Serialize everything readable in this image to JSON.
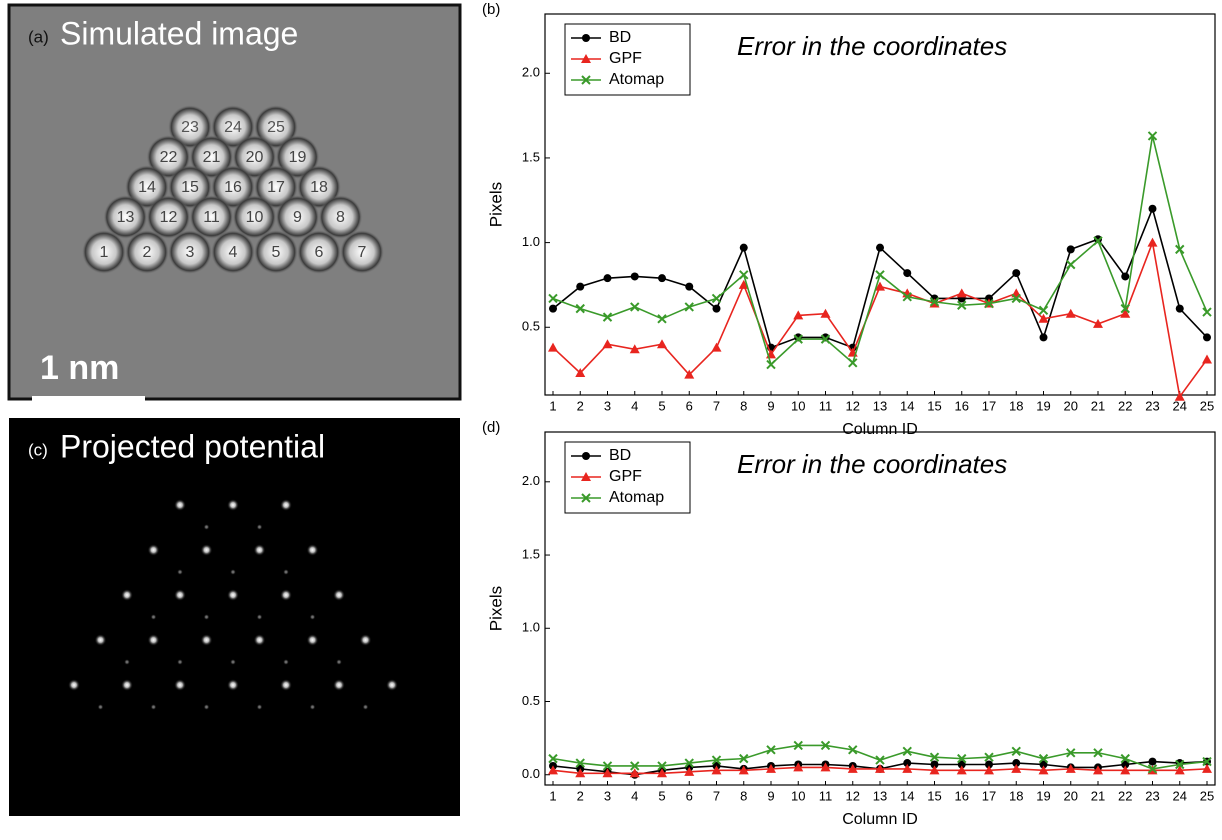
{
  "images": [
    {
      "label": "(a)",
      "title": "Simulated image",
      "scale_bar": "1 nm",
      "atom_labels": [
        "23",
        "24",
        "25",
        "22",
        "21",
        "20",
        "19",
        "14",
        "15",
        "16",
        "17",
        "18",
        "13",
        "12",
        "11",
        "10",
        "9",
        "8",
        "1",
        "2",
        "3",
        "4",
        "5",
        "6",
        "7"
      ]
    },
    {
      "label": "(c)",
      "title": "Projected potential"
    }
  ],
  "chart_data": [
    {
      "type": "line",
      "panel": "(b)",
      "title": "Error in the coordinates",
      "xlabel": "Column ID",
      "ylabel": "Pixels",
      "categories": [
        1,
        2,
        3,
        4,
        5,
        6,
        7,
        8,
        9,
        10,
        11,
        12,
        13,
        14,
        15,
        16,
        17,
        18,
        19,
        20,
        21,
        22,
        23,
        24,
        25
      ],
      "ylim": [
        0.1,
        2.35
      ],
      "yticks": [
        0.5,
        {
          "value": 1,
          "label": "1.0"
        },
        1.5,
        {
          "value": 2,
          "label": "2.0"
        }
      ],
      "legend": "upper left",
      "series": [
        {
          "name": "BD",
          "color": "#000000",
          "marker": "circle",
          "values": [
            0.61,
            0.74,
            0.79,
            0.8,
            0.79,
            0.74,
            0.61,
            0.97,
            0.38,
            0.44,
            0.44,
            0.38,
            0.97,
            0.82,
            0.67,
            0.67,
            0.67,
            0.82,
            0.44,
            0.96,
            1.02,
            0.8,
            1.2,
            0.61,
            0.44
          ]
        },
        {
          "name": "GPF",
          "color": "#e8251f",
          "marker": "triangle",
          "values": [
            0.38,
            0.23,
            0.4,
            0.37,
            0.4,
            0.22,
            0.38,
            0.75,
            0.34,
            0.57,
            0.58,
            0.35,
            0.74,
            0.7,
            0.64,
            0.7,
            0.64,
            0.7,
            0.55,
            0.58,
            0.52,
            0.58,
            1.0,
            0.09,
            0.31
          ]
        },
        {
          "name": "Atomap",
          "color": "#3a9a2a",
          "marker": "x",
          "values": [
            0.67,
            0.61,
            0.56,
            0.62,
            0.55,
            0.62,
            0.67,
            0.81,
            0.28,
            0.43,
            0.43,
            0.29,
            0.81,
            0.68,
            0.65,
            0.63,
            0.64,
            0.67,
            0.6,
            0.87,
            1.01,
            0.61,
            1.63,
            0.96,
            0.59
          ]
        }
      ]
    },
    {
      "type": "line",
      "panel": "(d)",
      "title": "Error in the coordinates",
      "xlabel": "Column ID",
      "ylabel": "Pixels",
      "categories": [
        1,
        2,
        3,
        4,
        5,
        6,
        7,
        8,
        9,
        10,
        11,
        12,
        13,
        14,
        15,
        16,
        17,
        18,
        19,
        20,
        21,
        22,
        23,
        24,
        25
      ],
      "ylim": [
        -0.07,
        2.34
      ],
      "yticks": [
        {
          "value": 0,
          "label": "0.0"
        },
        0.5,
        {
          "value": 1,
          "label": "1.0"
        },
        1.5,
        {
          "value": 2,
          "label": "2.0"
        }
      ],
      "legend": "upper left",
      "series": [
        {
          "name": "BD",
          "color": "#000000",
          "marker": "circle",
          "values": [
            0.06,
            0.04,
            0.02,
            0.0,
            0.03,
            0.05,
            0.06,
            0.04,
            0.06,
            0.07,
            0.07,
            0.06,
            0.04,
            0.08,
            0.07,
            0.07,
            0.07,
            0.08,
            0.07,
            0.05,
            0.05,
            0.07,
            0.09,
            0.08,
            0.09
          ]
        },
        {
          "name": "GPF",
          "color": "#e8251f",
          "marker": "triangle",
          "values": [
            0.03,
            0.01,
            0.01,
            0.01,
            0.01,
            0.02,
            0.03,
            0.03,
            0.04,
            0.05,
            0.05,
            0.04,
            0.04,
            0.04,
            0.03,
            0.03,
            0.03,
            0.04,
            0.03,
            0.04,
            0.03,
            0.03,
            0.03,
            0.03,
            0.04
          ]
        },
        {
          "name": "Atomap",
          "color": "#3a9a2a",
          "marker": "x",
          "values": [
            0.11,
            0.08,
            0.06,
            0.06,
            0.06,
            0.08,
            0.1,
            0.11,
            0.17,
            0.2,
            0.2,
            0.17,
            0.1,
            0.16,
            0.12,
            0.11,
            0.12,
            0.16,
            0.11,
            0.15,
            0.15,
            0.11,
            0.04,
            0.07,
            0.09
          ]
        }
      ]
    }
  ]
}
